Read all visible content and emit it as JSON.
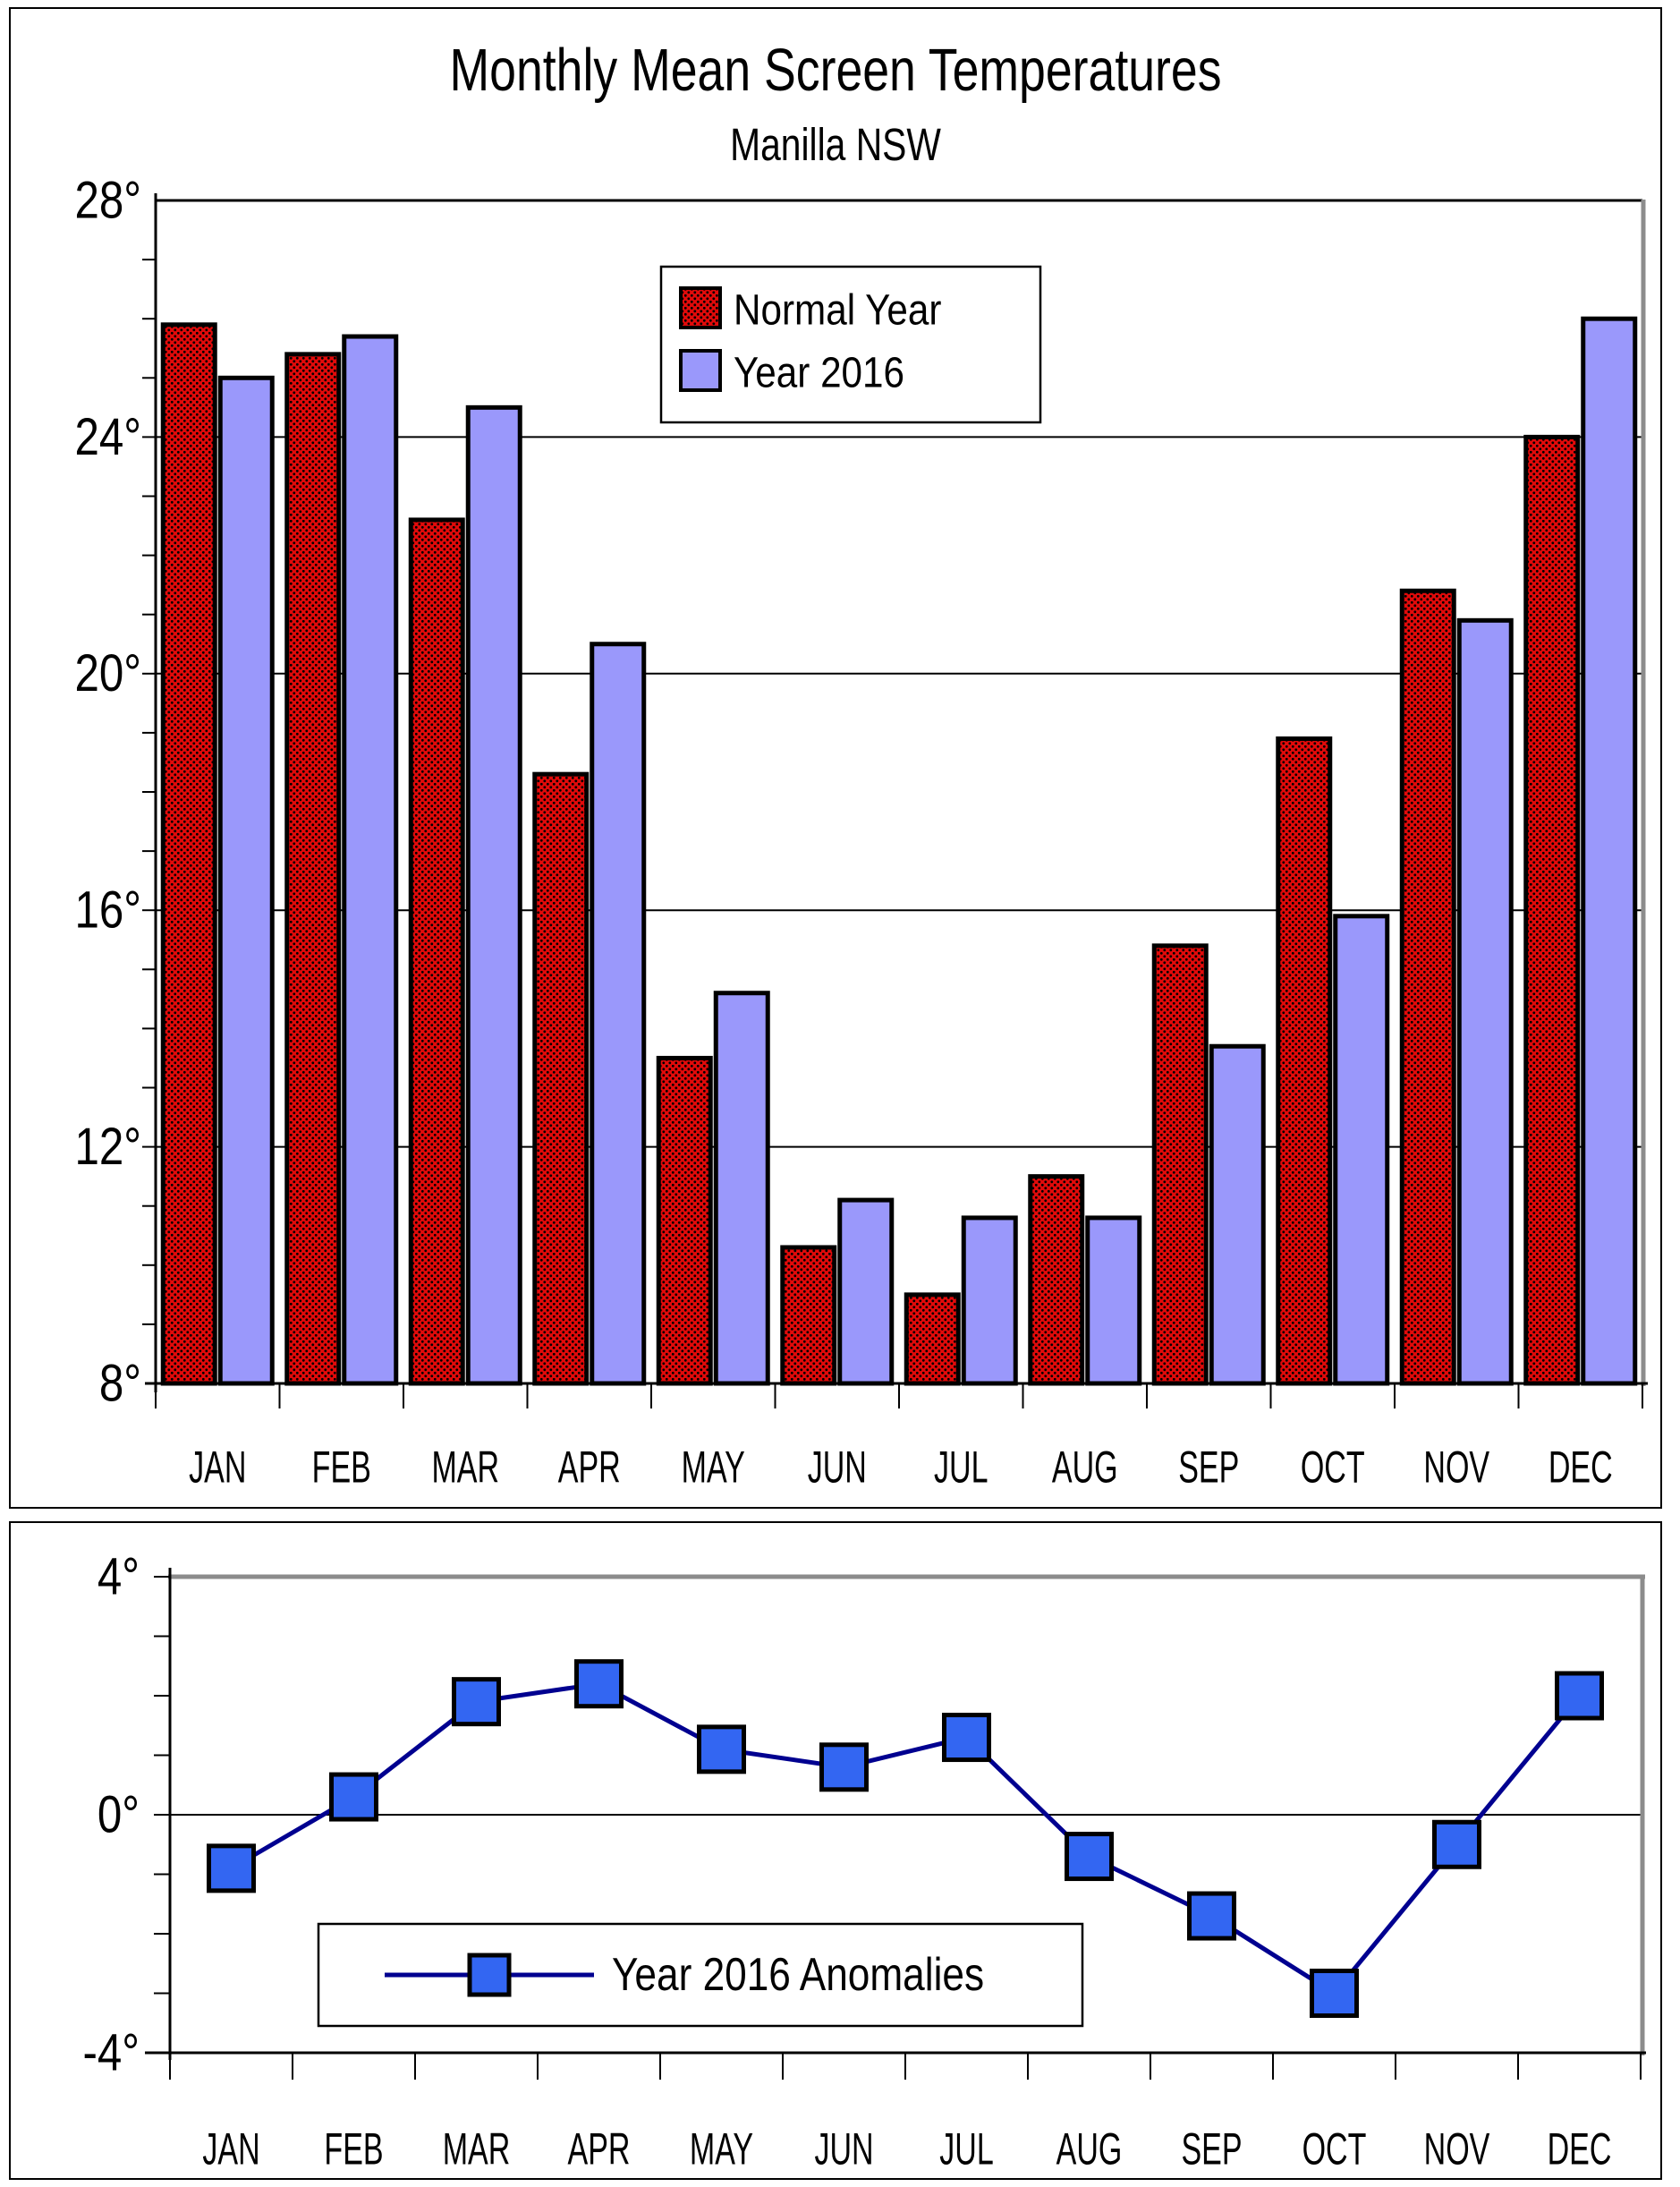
{
  "title": "Monthly Mean Screen Temperatures",
  "subtitle": "Manilla NSW",
  "chart_data": [
    {
      "type": "bar",
      "title": "Monthly Mean Screen Temperatures",
      "subtitle": "Manilla NSW",
      "categories": [
        "JAN",
        "FEB",
        "MAR",
        "APR",
        "MAY",
        "JUN",
        "JUL",
        "AUG",
        "SEP",
        "OCT",
        "NOV",
        "DEC"
      ],
      "series": [
        {
          "name": "Normal Year",
          "color": "#e20a0a",
          "pattern": "black-dots",
          "values": [
            25.9,
            25.4,
            22.6,
            18.3,
            13.5,
            10.3,
            9.5,
            11.5,
            15.4,
            18.9,
            21.4,
            24.0
          ]
        },
        {
          "name": "Year 2016",
          "color": "#9a98fb",
          "values": [
            25.0,
            25.7,
            24.5,
            20.5,
            14.6,
            11.1,
            10.8,
            10.8,
            13.7,
            15.9,
            20.9,
            26.0
          ]
        }
      ],
      "ylabel": "",
      "ylim": [
        8,
        28
      ],
      "ytick_values": [
        8,
        12,
        16,
        20,
        24,
        28
      ],
      "ytick_labels": [
        "8°",
        "12°",
        "16°",
        "20°",
        "24°",
        "28°"
      ],
      "minor_tick_step": 1,
      "grid": "horizontal-major",
      "legend_position": "top-center-inside",
      "bar_border_color": "#000000",
      "grid_color": "#000000",
      "frame_gray": "#8c8c8c"
    },
    {
      "type": "line",
      "legend_label": "Year 2016 Anomalies",
      "categories": [
        "JAN",
        "FEB",
        "MAR",
        "APR",
        "MAY",
        "JUN",
        "JUL",
        "AUG",
        "SEP",
        "OCT",
        "NOV",
        "DEC"
      ],
      "values": [
        -0.9,
        0.3,
        1.9,
        2.2,
        1.1,
        0.8,
        1.3,
        -0.7,
        -1.7,
        -3.0,
        -0.5,
        2.0
      ],
      "ylim": [
        -4,
        4
      ],
      "ytick_values": [
        -4,
        0,
        4
      ],
      "ytick_labels": [
        "-4°",
        "0°",
        "4°"
      ],
      "minor_tick_step": 1,
      "grid": "zero-line-only",
      "marker": "square",
      "marker_color": "#3366f2",
      "marker_border_color": "#000000",
      "line_color": "#000090",
      "legend_position": "bottom-left-inside",
      "frame_gray": "#8c8c8c"
    }
  ]
}
